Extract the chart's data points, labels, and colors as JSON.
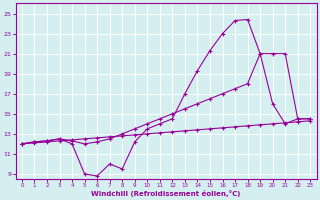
{
  "xlabel": "Windchill (Refroidissement éolien,°C)",
  "x_values": [
    0,
    1,
    2,
    3,
    4,
    5,
    6,
    7,
    8,
    9,
    10,
    11,
    12,
    13,
    14,
    15,
    16,
    17,
    18,
    19,
    20,
    21,
    22,
    23
  ],
  "line_top": [
    12.0,
    12.2,
    12.3,
    12.5,
    12.3,
    12.0,
    12.2,
    12.5,
    13.0,
    13.5,
    14.0,
    14.5,
    15.0,
    15.5,
    16.0,
    16.5,
    17.0,
    17.5,
    18.0,
    21.0,
    21.0,
    21.0,
    14.5,
    14.5
  ],
  "line_mid": [
    12.0,
    12.1,
    12.2,
    12.3,
    12.4,
    12.5,
    12.6,
    12.7,
    12.8,
    12.9,
    13.0,
    13.1,
    13.2,
    13.3,
    13.4,
    13.5,
    13.6,
    13.7,
    13.8,
    13.9,
    14.0,
    14.1,
    14.2,
    14.3
  ],
  "line_spiky": [
    12.0,
    12.2,
    12.3,
    12.5,
    12.0,
    9.0,
    8.8,
    10.0,
    9.5,
    12.2,
    13.5,
    14.0,
    14.5,
    17.0,
    19.3,
    21.3,
    23.0,
    24.3,
    24.4,
    21.0,
    16.0,
    14.0,
    14.5,
    14.5
  ],
  "line_color": "#990099",
  "marker": "+",
  "markersize": 3,
  "linewidth": 0.8,
  "bg_color": "#d5eef0",
  "grid_color": "#ffffff",
  "axis_color": "#990099",
  "tick_color": "#990099",
  "label_color": "#990099",
  "ylim": [
    8.5,
    26.0
  ],
  "xlim": [
    -0.5,
    23.5
  ],
  "yticks": [
    9,
    11,
    13,
    15,
    17,
    19,
    21,
    23,
    25
  ],
  "xticks": [
    0,
    1,
    2,
    3,
    4,
    5,
    6,
    7,
    8,
    9,
    10,
    11,
    12,
    13,
    14,
    15,
    16,
    17,
    18,
    19,
    20,
    21,
    22,
    23
  ]
}
